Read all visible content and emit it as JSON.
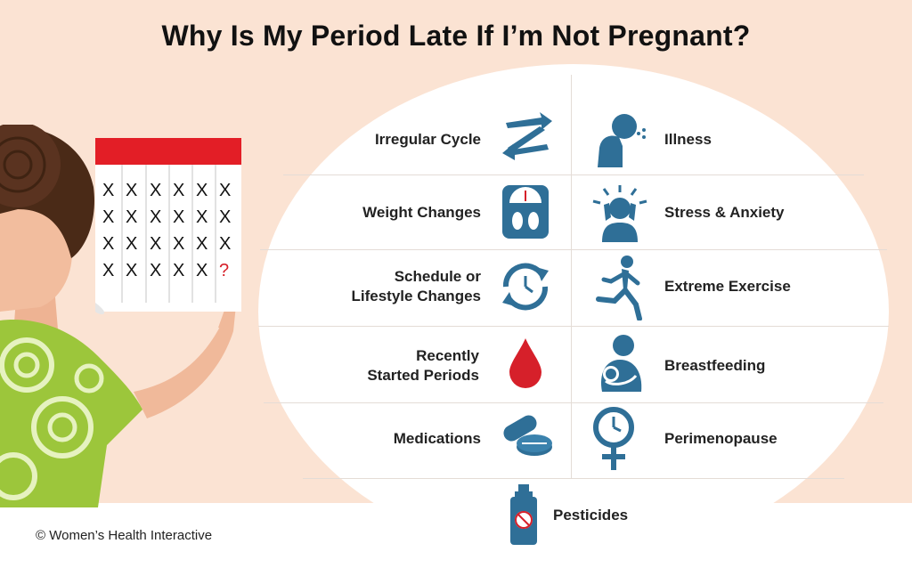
{
  "title": "Why Is My Period Late If I’m Not Pregnant?",
  "left_items": [
    {
      "label": "Irregular Cycle",
      "icon": "arrows-icon"
    },
    {
      "label": "Weight Changes",
      "icon": "scale-icon"
    },
    {
      "label": "Schedule or\nLifestyle Changes",
      "icon": "clock-cycle-icon"
    },
    {
      "label": "Recently\nStarted Periods",
      "icon": "blood-drop-icon"
    },
    {
      "label": "Medications",
      "icon": "pills-icon"
    }
  ],
  "right_items": [
    {
      "label": "Illness",
      "icon": "coughing-person-icon"
    },
    {
      "label": "Stress & Anxiety",
      "icon": "stressed-person-icon"
    },
    {
      "label": "Extreme Exercise",
      "icon": "runner-icon"
    },
    {
      "label": "Breastfeeding",
      "icon": "breastfeeding-icon"
    },
    {
      "label": "Perimenopause",
      "icon": "female-clock-icon"
    }
  ],
  "bottom_item": {
    "label": "Pesticides",
    "icon": "spray-can-icon"
  },
  "calendar": {
    "mark": "X",
    "question": "?"
  },
  "copyright": "© Women’s Health Interactive",
  "colors": {
    "accent_blue": "#2f6f97",
    "accent_red": "#d6202a",
    "background": "#fbe3d3",
    "shirt_green": "#9cc63b"
  }
}
